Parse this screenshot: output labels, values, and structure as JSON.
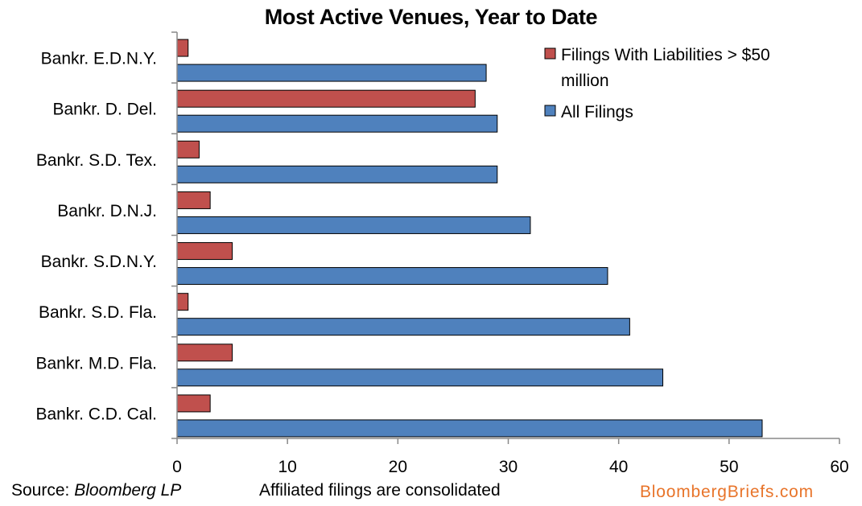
{
  "chart_data": {
    "type": "bar",
    "orientation": "horizontal",
    "title": "Most Active Venues, Year to Date",
    "categories": [
      "Bankr. E.D.N.Y.",
      "Bankr. D. Del.",
      "Bankr. S.D. Tex.",
      "Bankr. D.N.J.",
      "Bankr. S.D.N.Y.",
      "Bankr. S.D. Fla.",
      "Bankr. M.D. Fla.",
      "Bankr. C.D. Cal."
    ],
    "series": [
      {
        "name": "Filings With Liabilities > $50 million",
        "color": "#c0504d",
        "values": [
          1,
          27,
          2,
          3,
          5,
          1,
          5,
          3
        ]
      },
      {
        "name": "All Filings",
        "color": "#4f81bd",
        "values": [
          28,
          29,
          29,
          32,
          39,
          41,
          44,
          53
        ]
      }
    ],
    "xlim": [
      0,
      60
    ],
    "xticks": [
      0,
      10,
      20,
      30,
      40,
      50,
      60
    ],
    "grid": false,
    "legend_position": "top-right"
  },
  "legend": {
    "series1_line1": "Filings With Liabilities > $50",
    "series1_line2": "million",
    "series2": "All Filings"
  },
  "footer": {
    "source_prefix": "Source: ",
    "source_name": "Bloomberg LP",
    "note": "Affiliated filings are consolidated",
    "brand": "BloombergBriefs.com"
  }
}
